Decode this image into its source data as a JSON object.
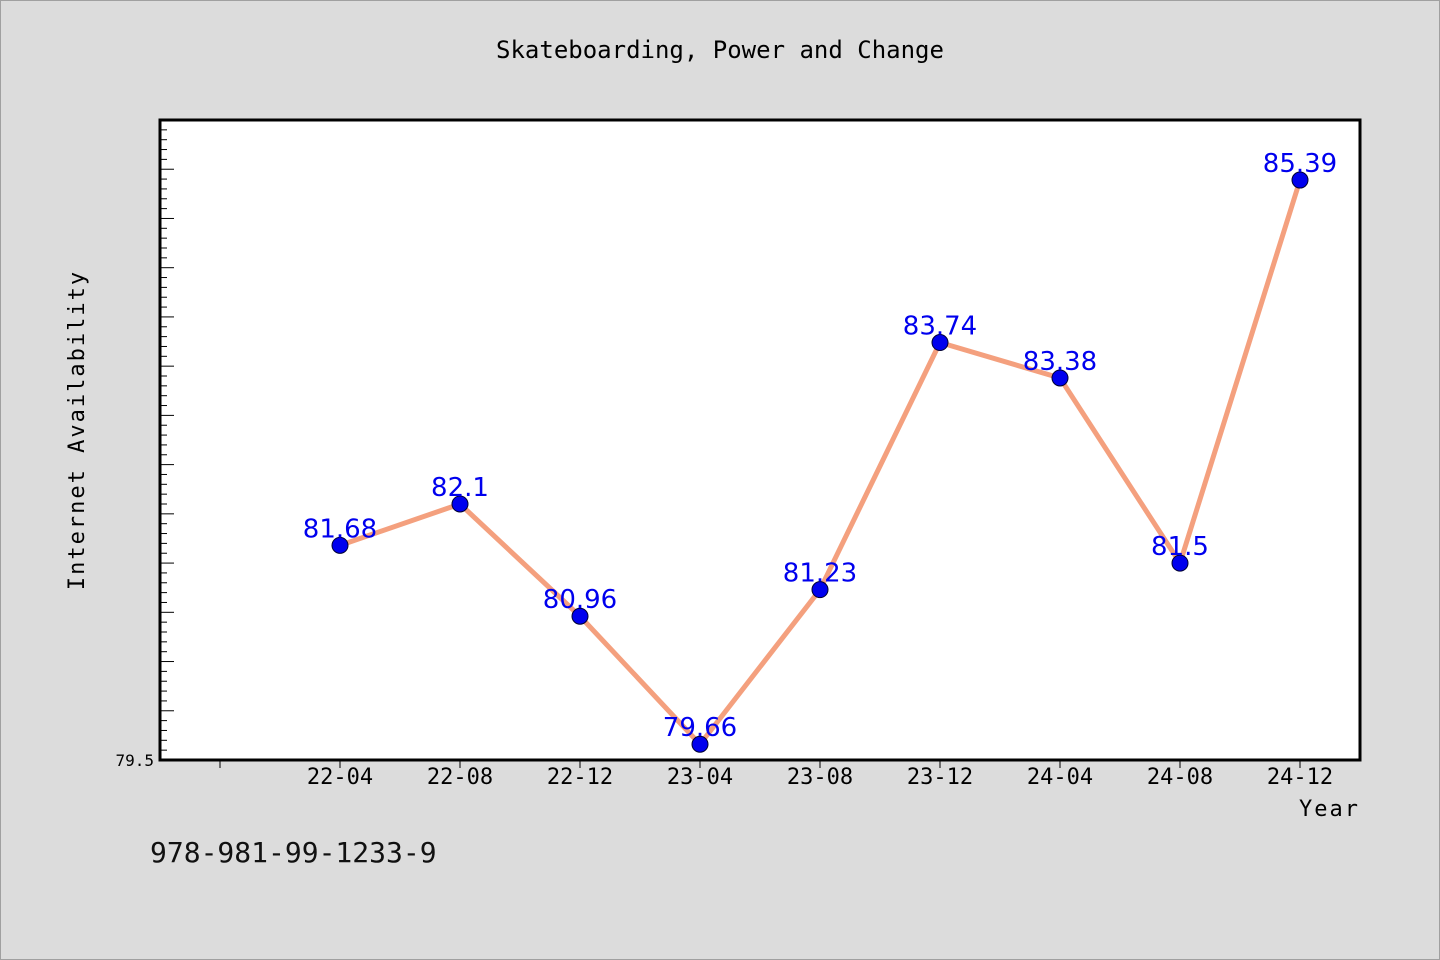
{
  "chart_data": {
    "type": "line",
    "title": "Skateboarding, Power and Change",
    "xlabel": "Year",
    "ylabel": "Internet Availability",
    "categories": [
      "22-04",
      "22-08",
      "22-12",
      "23-04",
      "23-08",
      "23-12",
      "24-04",
      "24-08",
      "24-12"
    ],
    "series": [
      {
        "values": [
          81.68,
          82.1,
          80.96,
          79.66,
          81.23,
          83.74,
          83.38,
          81.5,
          85.39
        ]
      }
    ],
    "data_labels": [
      "81.68",
      "82.1",
      "80.96",
      "79.66",
      "81.23",
      "83.74",
      "83.38",
      "81.5",
      "85.39"
    ],
    "y_tick_label": "79.5",
    "ylim": [
      79.5,
      86.0
    ],
    "grid": false,
    "colors": {
      "line": "#f4a07e",
      "marker": "#0000ee",
      "label": "#0000ee",
      "plot_background": "#ffffff",
      "page_background": "#dcdcdc"
    }
  },
  "footer": {
    "isbn": "978-981-99-1233-9"
  }
}
